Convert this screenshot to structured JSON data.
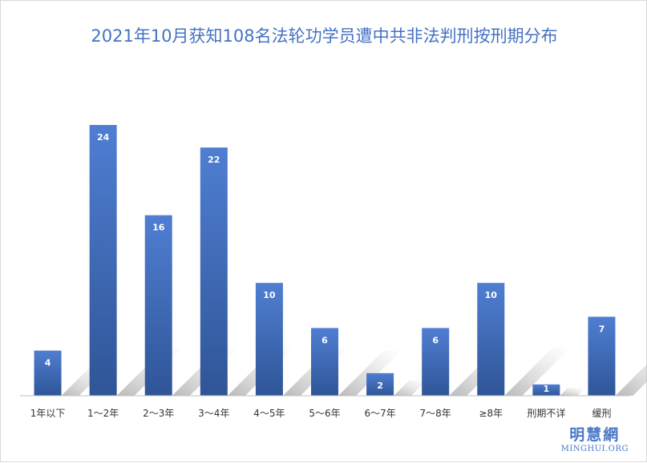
{
  "chart_data": {
    "type": "bar",
    "title": "2021年10月获知108名法轮功学员遭中共非法判刑按刑期分布",
    "categories": [
      "1年以下",
      "1～2年",
      "2～3年",
      "3～4年",
      "4～5年",
      "5～6年",
      "6～7年",
      "7～8年",
      "≥8年",
      "刑期不详",
      "缓刑"
    ],
    "values": [
      4,
      24,
      16,
      22,
      10,
      6,
      2,
      6,
      10,
      1,
      7
    ],
    "xlabel": "",
    "ylabel": "",
    "ylim": [
      0,
      24
    ],
    "grid": false,
    "data_labels": true,
    "colors": {
      "bar": "#4472c4",
      "bar_gradient_top": "#4f7ed2",
      "bar_gradient_bottom": "#2f5597",
      "title": "#4472c4",
      "axis": "#bfbfbf"
    }
  },
  "watermark": {
    "cn": "明慧網",
    "en": "MINGHUI.ORG"
  }
}
